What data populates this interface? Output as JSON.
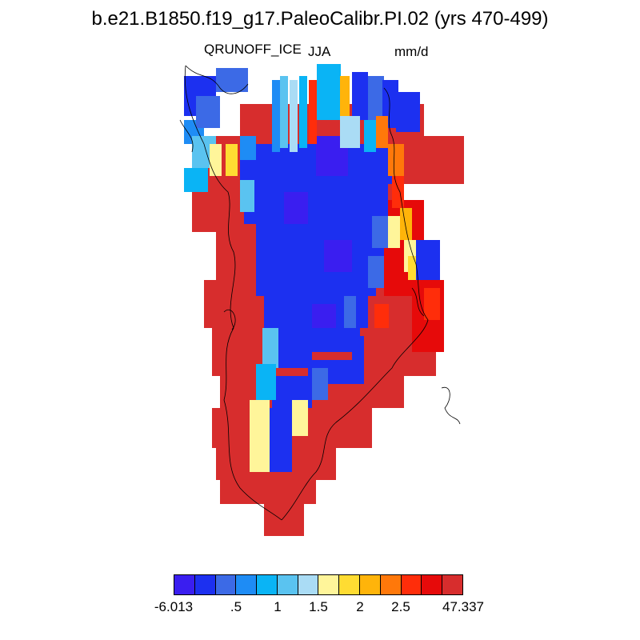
{
  "header": {
    "title": "b.e21.B1850.f19_g17.PaleoCalibr.PI.02 (yrs 470-499)",
    "field": "QRUNOFF_ICE",
    "season": "JJA",
    "units": "mm/d"
  },
  "colorbar": {
    "colors": [
      "#3a1ef0",
      "#1c30f0",
      "#3c6ae6",
      "#1e8cf5",
      "#0ab4f5",
      "#5ac3f0",
      "#aadcf5",
      "#fff59a",
      "#ffdc32",
      "#ffb40a",
      "#ff780a",
      "#ff2d0a",
      "#e60a0a",
      "#d72d2d"
    ],
    "labels": [
      "-6.013",
      ".5",
      "1",
      "1.5",
      "2",
      "2.5",
      "47.337"
    ]
  },
  "map": {
    "region": "Greenland",
    "projection": "polar stereographic",
    "ocean_color": "#ffffff",
    "coastline_color": "#000000"
  }
}
